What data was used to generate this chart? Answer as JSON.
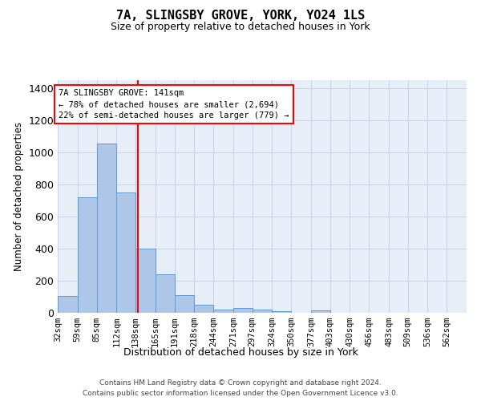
{
  "title": "7A, SLINGSBY GROVE, YORK, YO24 1LS",
  "subtitle": "Size of property relative to detached houses in York",
  "xlabel": "Distribution of detached houses by size in York",
  "ylabel": "Number of detached properties",
  "footer_line1": "Contains HM Land Registry data © Crown copyright and database right 2024.",
  "footer_line2": "Contains public sector information licensed under the Open Government Licence v3.0.",
  "property_label": "7A SLINGSBY GROVE: 141sqm",
  "annotation_line1": "← 78% of detached houses are smaller (2,694)",
  "annotation_line2": "22% of semi-detached houses are larger (779) →",
  "bar_color": "#aec6e8",
  "bar_edge_color": "#5b9bd5",
  "vline_color": "red",
  "grid_color": "#c8d4e8",
  "bg_color": "#e8eef8",
  "categories": [
    "32sqm",
    "59sqm",
    "85sqm",
    "112sqm",
    "138sqm",
    "165sqm",
    "191sqm",
    "218sqm",
    "244sqm",
    "271sqm",
    "297sqm",
    "324sqm",
    "350sqm",
    "377sqm",
    "403sqm",
    "430sqm",
    "456sqm",
    "483sqm",
    "509sqm",
    "536sqm",
    "562sqm"
  ],
  "values": [
    105,
    720,
    1055,
    750,
    400,
    240,
    110,
    48,
    20,
    32,
    20,
    10,
    0,
    15,
    0,
    0,
    0,
    0,
    0,
    0,
    0
  ],
  "bin_edges": [
    32,
    59,
    85,
    112,
    138,
    165,
    191,
    218,
    244,
    271,
    297,
    324,
    350,
    377,
    403,
    430,
    456,
    483,
    509,
    536,
    562,
    589
  ],
  "ylim": [
    0,
    1450
  ],
  "yticks": [
    0,
    200,
    400,
    600,
    800,
    1000,
    1200,
    1400
  ],
  "vline_x": 141,
  "title_fontsize": 11,
  "subtitle_fontsize": 9
}
